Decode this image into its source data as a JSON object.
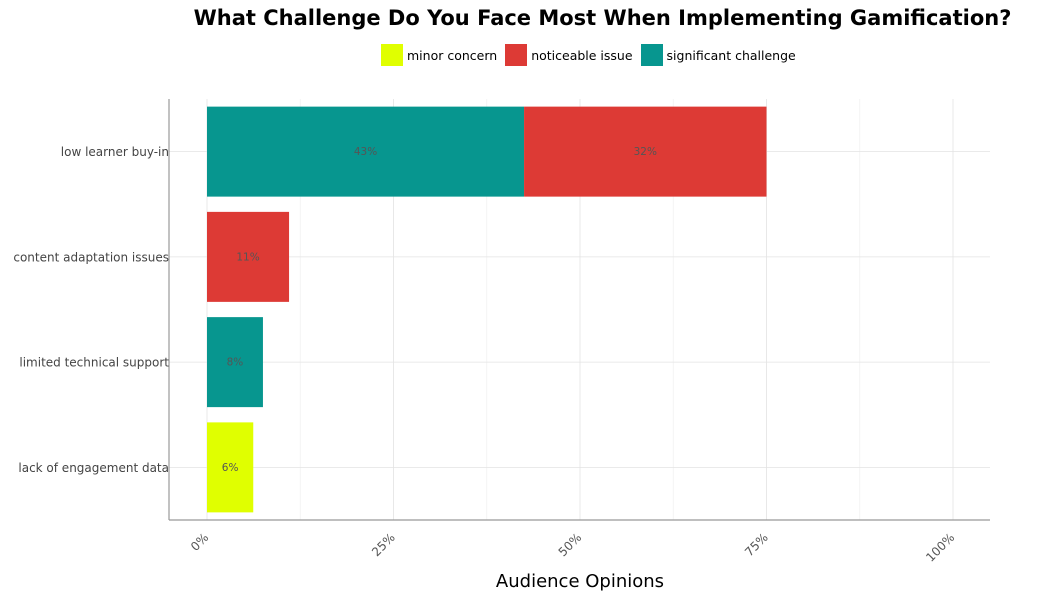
{
  "chart_data": {
    "type": "bar",
    "orientation": "horizontal",
    "stacked": true,
    "title": "What Challenge Do You Face Most When Implementing Gamification?",
    "xlabel": "Audience Opinions",
    "ylabel": "",
    "xlim": [
      0,
      1.05
    ],
    "x_ticks": [
      "0%",
      "25%",
      "50%",
      "75%",
      "100%"
    ],
    "x_tick_values": [
      0,
      0.25,
      0.5,
      0.75,
      1.0
    ],
    "grid": true,
    "legend_position": "top",
    "categories": [
      "low learner buy-in",
      "content adaptation issues",
      "limited technical support",
      "lack of engagement data"
    ],
    "series": [
      {
        "name": "significant challenge",
        "color": "#07968f",
        "values": [
          0.425,
          0,
          0.075,
          0
        ],
        "labels": [
          "43%",
          "",
          "8%",
          ""
        ]
      },
      {
        "name": "noticeable issue",
        "color": "#dd3a35",
        "values": [
          0.325,
          0.11,
          0,
          0
        ],
        "labels": [
          "32%",
          "11%",
          "",
          ""
        ]
      },
      {
        "name": "minor concern",
        "color": "#e0ff00",
        "values": [
          0,
          0,
          0,
          0.062
        ],
        "labels": [
          "",
          "",
          "",
          "6%"
        ]
      }
    ],
    "legend_order": [
      "minor concern",
      "noticeable issue",
      "significant challenge"
    ]
  }
}
